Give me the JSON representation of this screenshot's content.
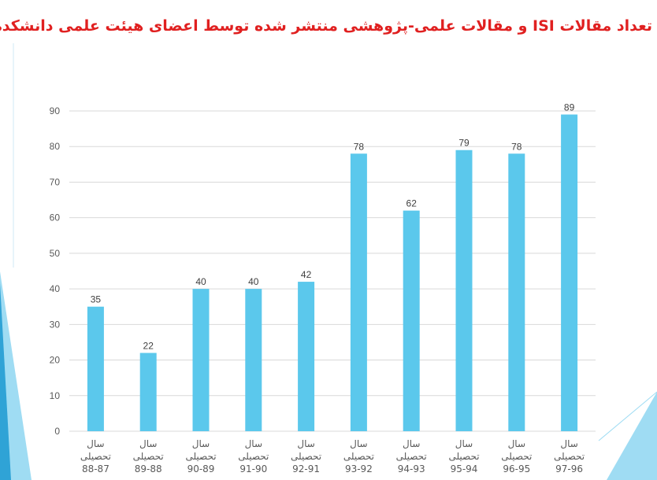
{
  "title": "تعداد مقالات ISI و مقالات علمی-پژوهشی منتشر شده توسط اعضای هیئت علمی دانشکده",
  "colors": {
    "bar": "#5bc8ec",
    "title": "#e02020",
    "grid": "#d9d9d9",
    "accent_light": "#9fdcf3",
    "accent_dark": "#2fa3d6"
  },
  "chart_data": {
    "type": "bar",
    "title": "",
    "xlabel": "",
    "ylabel": "",
    "ylim": [
      0,
      90
    ],
    "yticks": [
      0,
      10,
      20,
      30,
      40,
      50,
      60,
      70,
      80,
      90
    ],
    "grid": true,
    "legend": "none",
    "categories": [
      [
        "سال",
        "تحصیلی",
        "88-87"
      ],
      [
        "سال",
        "تحصیلی",
        "89-88"
      ],
      [
        "سال",
        "تحصیلی",
        "90-89"
      ],
      [
        "سال",
        "تحصیلی",
        "91-90"
      ],
      [
        "سال",
        "تحصیلی",
        "92-91"
      ],
      [
        "سال",
        "تحصیلی",
        "93-92"
      ],
      [
        "سال",
        "تحصیلی",
        "94-93"
      ],
      [
        "سال",
        "تحصیلی",
        "95-94"
      ],
      [
        "سال",
        "تحصیلی",
        "96-95"
      ],
      [
        "سال",
        "تحصیلی",
        "97-96"
      ]
    ],
    "values": [
      35,
      22,
      40,
      40,
      42,
      78,
      62,
      79,
      78,
      89
    ]
  }
}
